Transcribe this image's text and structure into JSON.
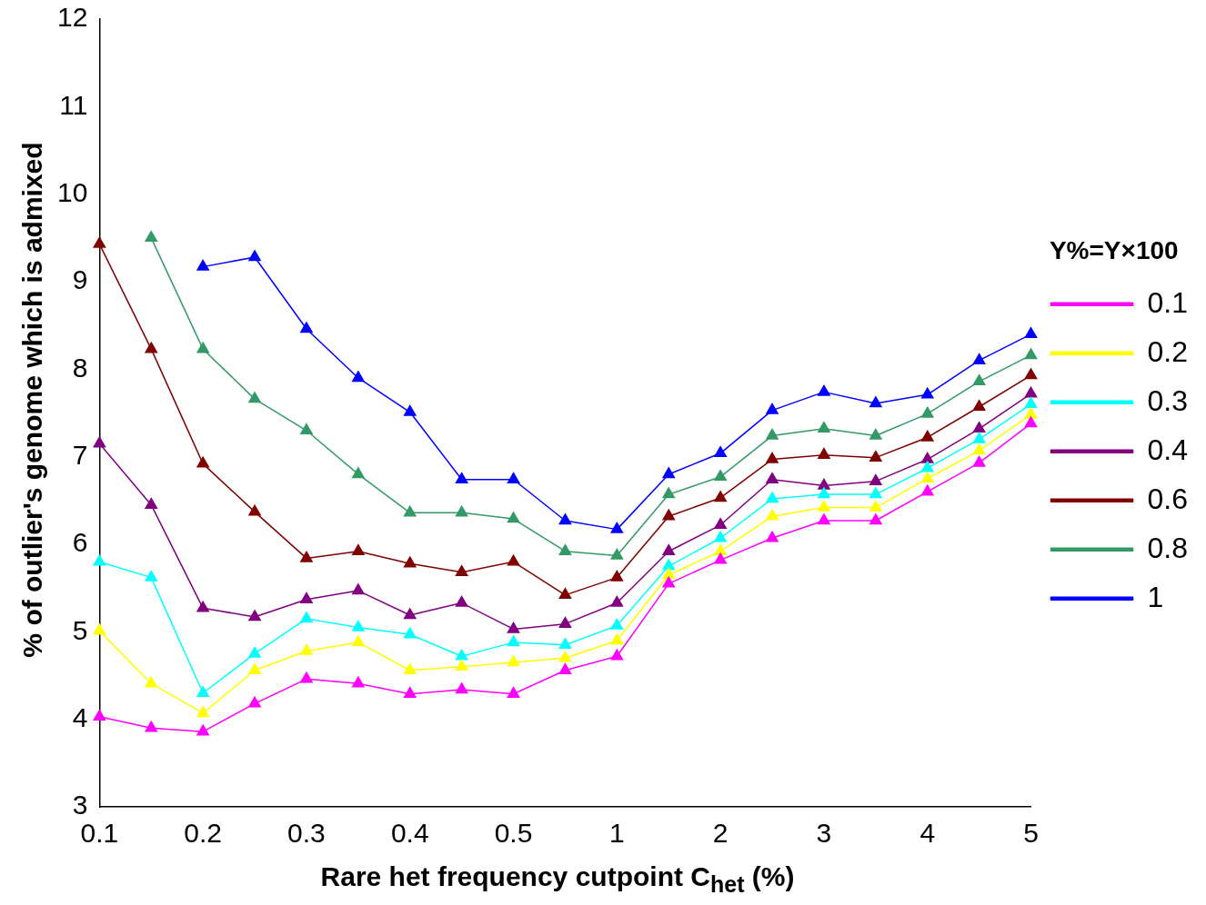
{
  "chart_data": {
    "type": "line",
    "xlabel": "Rare het frequency cutpoint C$_{het}$ (%)",
    "ylabel": "% of outlier's genome which is admixed",
    "legend_title": "Y%=Y×100",
    "categories": [
      "0.1",
      null,
      "0.2",
      null,
      "0.3",
      null,
      "0.4",
      null,
      "0.5",
      null,
      "1",
      null,
      "2",
      null,
      "3",
      null,
      "4",
      null,
      "5"
    ],
    "ylim": [
      3,
      12
    ],
    "yticks": [
      3,
      4,
      5,
      6,
      7,
      8,
      9,
      10,
      11,
      12
    ],
    "grid": false,
    "legend": "right",
    "marker": "triangle",
    "line_style": "solid",
    "series": [
      {
        "name": "0.1",
        "color": "#ff00ff",
        "values": [
          4.03,
          3.9,
          3.86,
          4.18,
          4.46,
          4.41,
          4.29,
          4.34,
          4.29,
          4.56,
          4.72,
          5.55,
          5.82,
          6.07,
          6.27,
          6.27,
          6.6,
          6.93,
          7.38
        ]
      },
      {
        "name": "0.2",
        "color": "#ffff00",
        "values": [
          5.01,
          4.41,
          4.07,
          4.56,
          4.78,
          4.88,
          4.56,
          4.6,
          4.65,
          4.7,
          4.9,
          5.65,
          5.92,
          6.32,
          6.42,
          6.42,
          6.75,
          7.07,
          7.48
        ]
      },
      {
        "name": "0.3",
        "color": "#00ffff",
        "values": [
          5.8,
          5.62,
          4.3,
          4.75,
          5.15,
          5.05,
          4.97,
          4.72,
          4.88,
          4.85,
          5.07,
          5.75,
          6.07,
          6.52,
          6.57,
          6.57,
          6.87,
          7.2,
          7.6
        ]
      },
      {
        "name": "0.4",
        "color": "#800080",
        "values": [
          7.15,
          6.45,
          5.27,
          5.17,
          5.37,
          5.47,
          5.19,
          5.33,
          5.03,
          5.09,
          5.33,
          5.92,
          6.22,
          6.74,
          6.67,
          6.72,
          6.97,
          7.32,
          7.72
        ]
      },
      {
        "name": "0.6",
        "color": "#800000",
        "values": [
          9.43,
          8.23,
          6.92,
          6.37,
          5.84,
          5.92,
          5.78,
          5.68,
          5.8,
          5.42,
          5.62,
          6.32,
          6.53,
          6.97,
          7.02,
          6.99,
          7.22,
          7.57,
          7.93
        ]
      },
      {
        "name": "0.8",
        "color": "#339966",
        "values": [
          null,
          9.5,
          8.23,
          7.66,
          7.3,
          6.8,
          6.36,
          6.36,
          6.29,
          5.92,
          5.87,
          6.57,
          6.77,
          7.24,
          7.32,
          7.24,
          7.49,
          7.86,
          8.16
        ]
      },
      {
        "name": "1",
        "color": "#0000ff",
        "values": [
          null,
          null,
          9.17,
          9.28,
          8.46,
          7.9,
          7.51,
          6.74,
          6.74,
          6.27,
          6.17,
          6.8,
          7.04,
          7.53,
          7.74,
          7.61,
          7.71,
          8.1,
          8.4
        ]
      }
    ]
  }
}
